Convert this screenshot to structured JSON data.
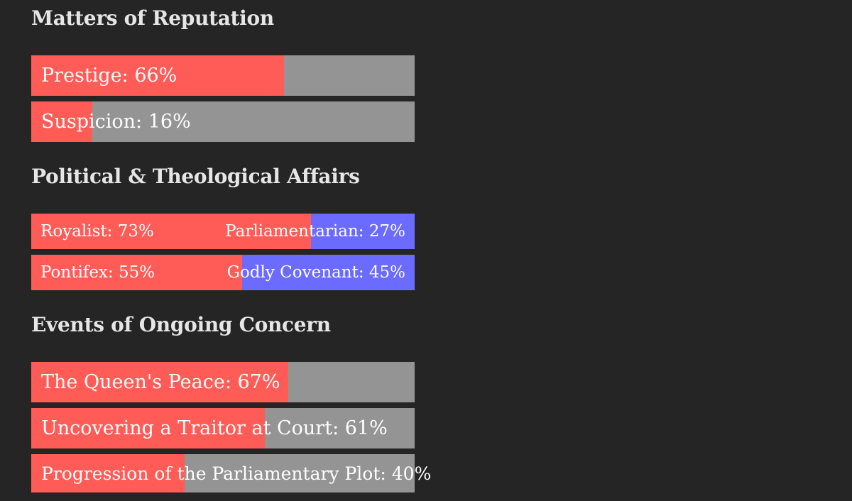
{
  "reputation": {
    "heading": "Matters of Reputation",
    "bars": [
      {
        "label": "Prestige: 66%",
        "percent": 66
      },
      {
        "label": "Suspicion: 16%",
        "percent": 16
      }
    ]
  },
  "affairs": {
    "heading": "Political & Theological Affairs",
    "bars": [
      {
        "left_label": "Royalist: 73%",
        "right_label": "Parliamentarian: 27%",
        "left_percent": 73
      },
      {
        "left_label": "Pontifex: 55%",
        "right_label": "Godly Covenant: 45%",
        "left_percent": 55
      }
    ]
  },
  "events": {
    "heading": "Events of Ongoing Concern",
    "bars": [
      {
        "label": "The Queen's Peace: 67%",
        "percent": 67
      },
      {
        "label": "Uncovering a Traitor at Court: 61%",
        "percent": 61
      },
      {
        "label": "Progression of the Parliamentary Plot: 40%",
        "percent": 40
      }
    ]
  },
  "colors": {
    "background": "#252525",
    "fill": "#ff5c57",
    "track": "#949494",
    "opposing": "#6b6bff"
  }
}
